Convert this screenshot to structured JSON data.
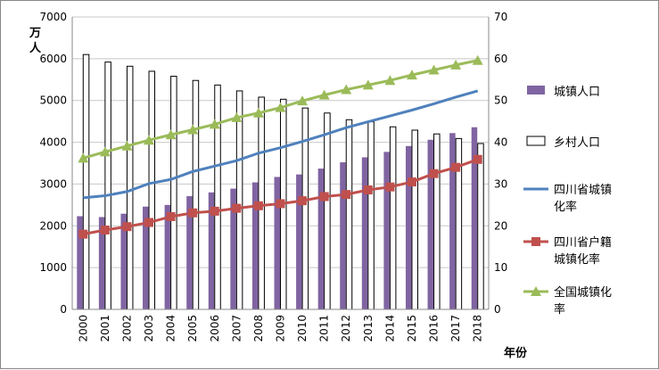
{
  "chart_data": {
    "type": "bar",
    "categories": [
      "2000",
      "2001",
      "2002",
      "2003",
      "2004",
      "2005",
      "2006",
      "2007",
      "2008",
      "2009",
      "2010",
      "2011",
      "2012",
      "2013",
      "2014",
      "2015",
      "2016",
      "2017",
      "2018"
    ],
    "y_left": {
      "label": "万人",
      "ylim": [
        0,
        7000
      ],
      "ticks": [
        "0",
        "1000",
        "2000",
        "3000",
        "4000",
        "5000",
        "6000",
        "7000"
      ]
    },
    "y_right": {
      "ylim": [
        0,
        70
      ],
      "ticks": [
        "0",
        "10",
        "20",
        "30",
        "40",
        "50",
        "60",
        "70"
      ]
    },
    "xlabel": "年份",
    "grid": true,
    "legend_position": "right",
    "series": [
      {
        "name": "城镇人口",
        "kind": "bar",
        "axis": "left",
        "color": "#8064a2",
        "values": [
          2230,
          2210,
          2290,
          2460,
          2500,
          2710,
          2800,
          2890,
          3040,
          3170,
          3230,
          3370,
          3520,
          3640,
          3770,
          3910,
          4060,
          4220,
          4360
        ]
      },
      {
        "name": "乡村人口",
        "kind": "bar",
        "axis": "left",
        "color": "#ffffff",
        "stroke": "#000000",
        "values": [
          6100,
          5920,
          5820,
          5700,
          5580,
          5480,
          5370,
          5230,
          5080,
          5030,
          4820,
          4700,
          4540,
          4490,
          4370,
          4290,
          4200,
          4090,
          3970
        ]
      },
      {
        "name": "四川省城镇化率",
        "kind": "line",
        "axis": "right",
        "color": "#4f81bd",
        "marker": "none",
        "values": [
          26.7,
          27.2,
          28.2,
          30.1,
          31.1,
          33.0,
          34.3,
          35.6,
          37.4,
          38.7,
          40.2,
          41.8,
          43.5,
          44.9,
          46.3,
          47.7,
          49.2,
          50.8,
          52.3
        ]
      },
      {
        "name": "四川省户籍城镇化率",
        "kind": "line",
        "axis": "right",
        "color": "#c0504d",
        "marker": "square",
        "values": [
          18.0,
          19.0,
          19.8,
          20.8,
          22.2,
          23.1,
          23.5,
          24.2,
          24.8,
          25.3,
          26.0,
          27.0,
          27.5,
          28.6,
          29.3,
          30.5,
          32.5,
          34.0,
          35.9
        ]
      },
      {
        "name": "全国城镇化率",
        "kind": "line",
        "axis": "right",
        "color": "#9bbb59",
        "marker": "triangle",
        "values": [
          36.2,
          37.7,
          39.1,
          40.5,
          41.8,
          43.0,
          44.3,
          45.9,
          47.0,
          48.3,
          49.9,
          51.3,
          52.6,
          53.7,
          54.8,
          56.1,
          57.3,
          58.5,
          59.6
        ]
      }
    ]
  }
}
